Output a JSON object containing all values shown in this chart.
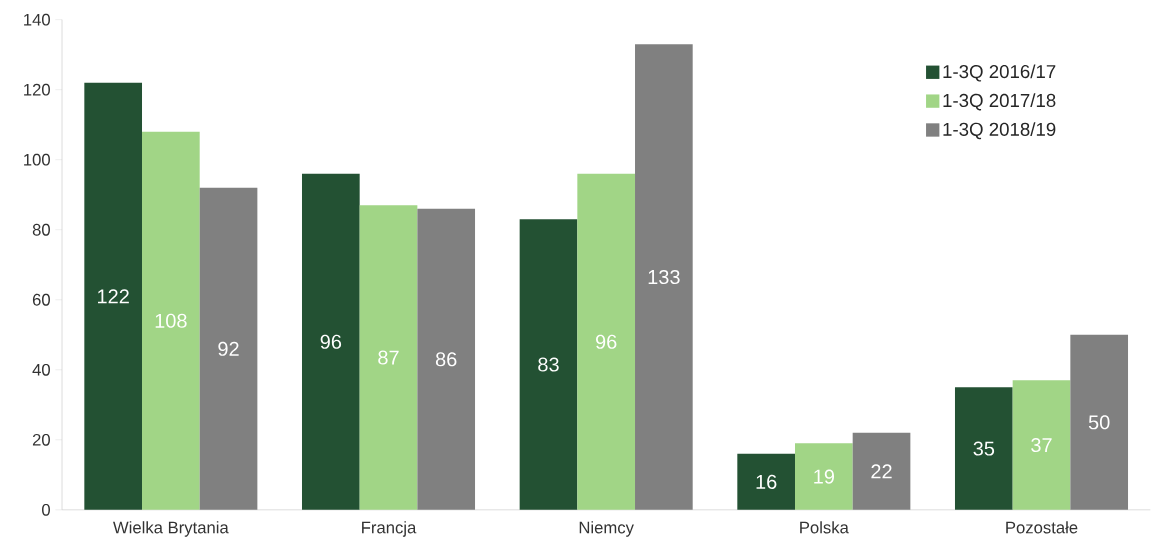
{
  "chart_data": {
    "type": "bar",
    "categories": [
      "Wielka Brytania",
      "Francja",
      "Niemcy",
      "Polska",
      "Pozostałe"
    ],
    "series": [
      {
        "name": "1-3Q 2016/17",
        "color": "#235133",
        "values": [
          122,
          96,
          83,
          16,
          35
        ]
      },
      {
        "name": "1-3Q 2017/18",
        "color": "#a1d586",
        "values": [
          108,
          87,
          96,
          19,
          37
        ]
      },
      {
        "name": "1-3Q 2018/19",
        "color": "#808080",
        "values": [
          92,
          86,
          133,
          22,
          50
        ]
      }
    ],
    "ylim": [
      0,
      140
    ],
    "yticks": [
      0,
      20,
      40,
      60,
      80,
      100,
      120,
      140
    ],
    "data_labels": true,
    "legend": "top right",
    "grid": false
  }
}
